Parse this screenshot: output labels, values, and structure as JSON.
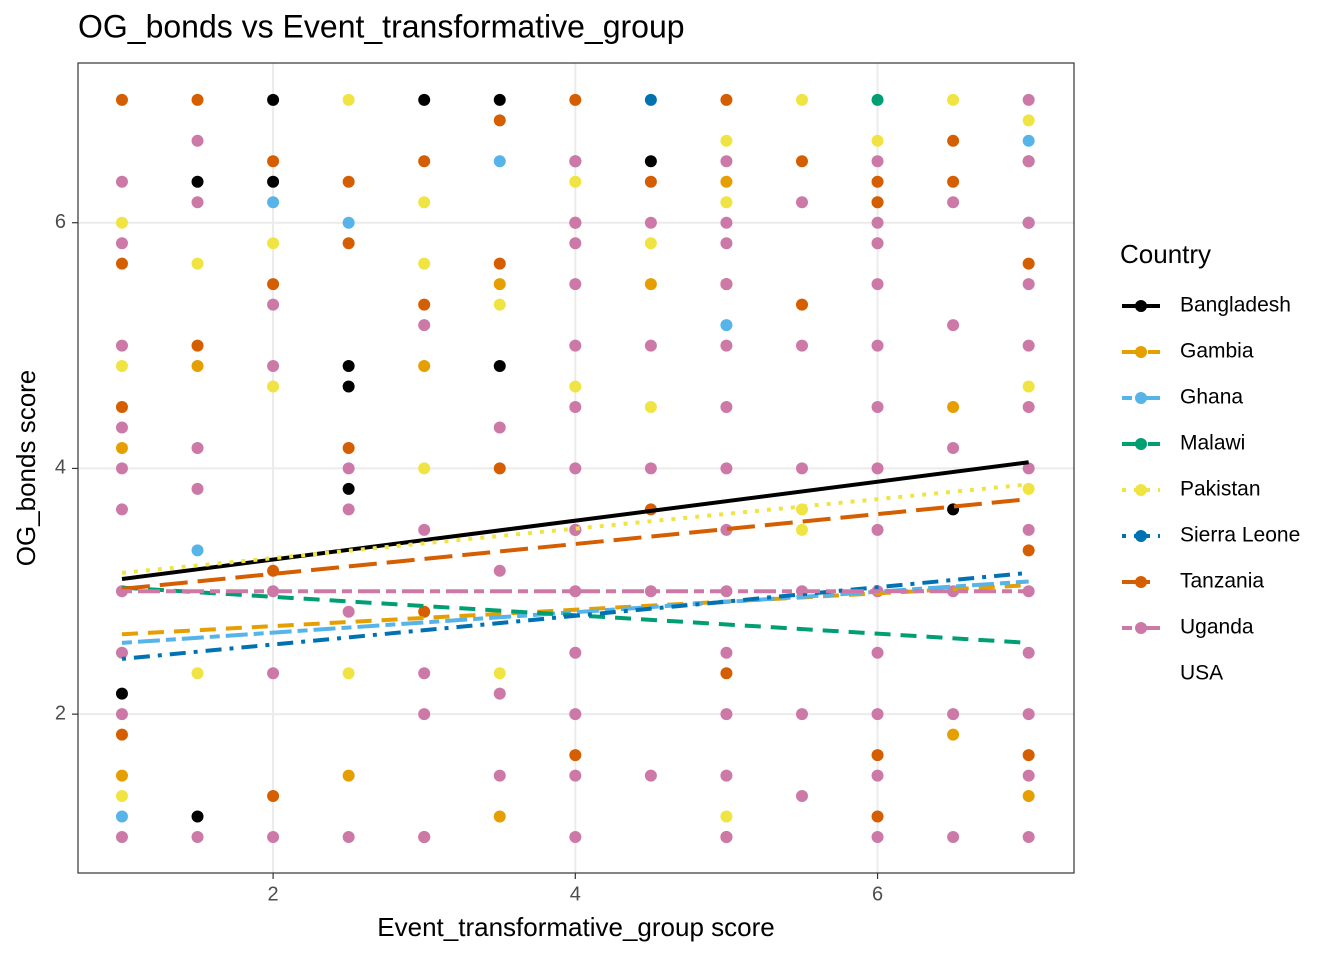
{
  "chart_data": {
    "type": "scatter",
    "title": "OG_bonds vs Event_transformative_group",
    "x_label": "Event_transformative_group score",
    "y_label": "OG_bonds score",
    "legend_title": "Country",
    "legend_position": "right",
    "grid": true,
    "xlim": [
      0.709,
      7.3
    ],
    "ylim": [
      0.707,
      7.3
    ],
    "xticks": [
      2,
      4,
      6
    ],
    "yticks": [
      2,
      4,
      6
    ],
    "series": [
      {
        "name": "Bangladesh",
        "color": "#000000",
        "linetype": "solid",
        "x": [
          2,
          3,
          3.5,
          2,
          1.5,
          2.5,
          2.5,
          3.5,
          4.5,
          1,
          1.5,
          6.5,
          2.5
        ],
        "y": [
          7,
          7,
          7,
          6.3333,
          6.3333,
          4.8333,
          4.6667,
          4.8333,
          6.5,
          2.1667,
          1.1667,
          3.6667,
          3.8333
        ],
        "fit": {
          "x": [
            1,
            7
          ],
          "y": [
            3.1,
            4.05
          ]
        }
      },
      {
        "name": "Gambia",
        "color": "#E69F00",
        "linetype": "dashed",
        "x": [
          1,
          1,
          1.5,
          3,
          3.5,
          4.5,
          5,
          6,
          6.5,
          7,
          2.5,
          3.5,
          6.5
        ],
        "y": [
          4.1667,
          1.5,
          4.8333,
          4.8333,
          5.5,
          5.5,
          6.3333,
          6.1667,
          4.5,
          1.3333,
          1.5,
          1.1667,
          1.8333
        ],
        "fit": {
          "x": [
            1,
            7
          ],
          "y": [
            2.65,
            3.05
          ]
        }
      },
      {
        "name": "Ghana",
        "color": "#56B4E9",
        "linetype": "twodash",
        "x": [
          2,
          2.5,
          3.5,
          1.5,
          5,
          7,
          1
        ],
        "y": [
          6.1667,
          6,
          6.5,
          3.3333,
          5.1667,
          6.6667,
          1.1667
        ],
        "fit": {
          "x": [
            1,
            7
          ],
          "y": [
            2.58,
            3.08
          ]
        }
      },
      {
        "name": "Malawi",
        "color": "#009E73",
        "linetype": "dashed",
        "x": [
          4,
          6
        ],
        "y": [
          6.5,
          7
        ],
        "fit": {
          "x": [
            1,
            7
          ],
          "y": [
            3.03,
            2.58
          ]
        }
      },
      {
        "name": "Pakistan",
        "color": "#F0E442",
        "linetype": "dotted",
        "x": [
          2.5,
          5,
          5.5,
          6,
          6.5,
          7,
          1,
          3,
          4,
          4.5,
          5,
          1.5,
          2,
          3,
          3.5,
          4,
          5.5,
          6,
          7,
          1.5,
          2.5,
          1,
          2,
          3,
          4.5,
          5.5,
          7,
          1,
          3.5,
          5
        ],
        "y": [
          7,
          6.6667,
          7,
          6.6667,
          7,
          6.8333,
          6,
          6.1667,
          6.3333,
          5.8333,
          6.1667,
          5.6667,
          5.8333,
          5.6667,
          5.3333,
          4.6667,
          3.5,
          5.8333,
          4.6667,
          2.3333,
          2.3333,
          4.8333,
          4.6667,
          4,
          4.5,
          3.6667,
          3.8333,
          1.3333,
          2.3333,
          1.1667
        ],
        "fit": {
          "x": [
            1,
            7
          ],
          "y": [
            3.15,
            3.87
          ]
        }
      },
      {
        "name": "Sierra Leone",
        "color": "#0072B2",
        "linetype": "dotdash",
        "x": [
          4.5,
          7
        ],
        "y": [
          7,
          6
        ],
        "fit": {
          "x": [
            1,
            7
          ],
          "y": [
            2.45,
            3.15
          ]
        }
      },
      {
        "name": "Tanzania",
        "color": "#D55E00",
        "linetype": "longdash",
        "x": [
          1,
          1.5,
          2,
          2.5,
          3,
          3.5,
          4,
          5,
          5.5,
          6,
          6.5,
          7,
          1,
          1.5,
          2,
          2.5,
          3,
          3.5,
          4,
          4.5,
          5,
          5.5,
          6,
          6.5,
          7,
          1,
          2,
          3,
          4,
          5,
          6,
          7,
          1,
          2,
          3,
          4,
          5,
          6,
          7,
          2.5,
          3.5,
          4.5
        ],
        "y": [
          7,
          7,
          6.5,
          6.3333,
          6.5,
          6.8333,
          7,
          7,
          6.5,
          6.3333,
          6.6667,
          6.5,
          5.6667,
          5,
          5.5,
          5.8333,
          5.3333,
          5.6667,
          6,
          6.3333,
          5.5,
          5.3333,
          6.1667,
          6.3333,
          5.6667,
          4.5,
          3.1667,
          2.8333,
          3.5,
          2.3333,
          1.6667,
          3.3333,
          1.8333,
          1.3333,
          1,
          1.6667,
          1,
          1.1667,
          1.6667,
          4.1667,
          4,
          3.6667
        ],
        "fit": {
          "x": [
            1,
            7
          ],
          "y": [
            3.02,
            3.75
          ]
        }
      },
      {
        "name": "Uganda",
        "color": "#CC79A7",
        "linetype": "twodash",
        "x": [
          4,
          4,
          4,
          4,
          4,
          4,
          4,
          4,
          4,
          4,
          4,
          4,
          4,
          5,
          5,
          5,
          5,
          5,
          5,
          5,
          5,
          5,
          5,
          5,
          5,
          5,
          6,
          6,
          6,
          6,
          6,
          6,
          6,
          6,
          6,
          6,
          6,
          6,
          6,
          7,
          7,
          7,
          7,
          7,
          7,
          7,
          7,
          7,
          7,
          7,
          7,
          7,
          1,
          1,
          1,
          1,
          1,
          1,
          1,
          1,
          1,
          1,
          1.5,
          1.5,
          1.5,
          1.5,
          1.5,
          2,
          2,
          2,
          2,
          2,
          2.5,
          2.5,
          2.5,
          2.5,
          3,
          3,
          3,
          3,
          3,
          5.5,
          5.5,
          5.5,
          5.5,
          5.5,
          5.5,
          6.5,
          6.5,
          6.5,
          6.5,
          6.5,
          6.5,
          3.5,
          3.5,
          3.5,
          3.5,
          4.5,
          4.5,
          4.5,
          4.5,
          4.5
        ],
        "y": [
          1,
          1.5,
          2,
          2.5,
          3,
          3.5,
          4,
          4.5,
          5,
          5.5,
          6,
          6.5,
          5.8333,
          1,
          1.5,
          2,
          2.5,
          3,
          3.5,
          4,
          4.5,
          5,
          5.5,
          6,
          6.5,
          5.8333,
          1,
          1.5,
          2,
          2.5,
          3,
          3.5,
          4,
          4.5,
          5,
          5.5,
          6,
          6.5,
          5.8333,
          1,
          1.5,
          2,
          2.5,
          3,
          3.5,
          4,
          4.5,
          5,
          5.5,
          6,
          6.5,
          7,
          6.3333,
          5.8333,
          5,
          4.3333,
          4,
          3.6667,
          3,
          2.5,
          2,
          1,
          6.6667,
          6.1667,
          4.1667,
          3.8333,
          1,
          5.3333,
          4.8333,
          3,
          2.3333,
          1,
          4,
          3.6667,
          2.8333,
          1,
          5.1667,
          3.5,
          2.3333,
          2,
          1,
          6.1667,
          5,
          4,
          3,
          2,
          1.3333,
          6.1667,
          5.1667,
          4.1667,
          3,
          2,
          1,
          4.3333,
          3.1667,
          2.1667,
          1.5,
          6,
          5,
          4,
          3,
          1.5
        ],
        "fit": {
          "x": [
            1,
            7
          ],
          "y": [
            3.0,
            3.0
          ]
        }
      },
      {
        "name": "USA",
        "color": null,
        "linetype": null,
        "x": [],
        "y": []
      }
    ]
  }
}
